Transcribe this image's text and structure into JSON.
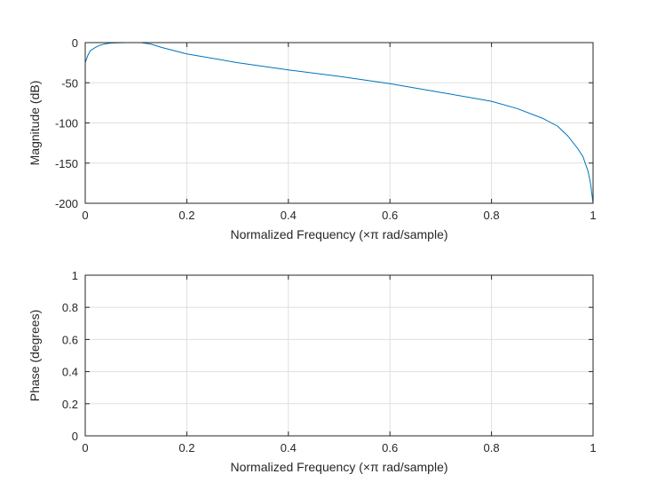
{
  "chart_data": [
    {
      "type": "line",
      "xlabel": "Normalized Frequency (×π rad/sample)",
      "ylabel": "Magnitude (dB)",
      "xlim": [
        0,
        1
      ],
      "ylim": [
        -200,
        0
      ],
      "grid": true,
      "xticks": [
        "0",
        "0.2",
        "0.4",
        "0.6",
        "0.8",
        "1"
      ],
      "yticks": [
        "0",
        "-50",
        "-100",
        "-150",
        "-200"
      ],
      "line_color": "#0072bd",
      "x": [
        0,
        0.005,
        0.01,
        0.02,
        0.03,
        0.04,
        0.05,
        0.08,
        0.11,
        0.13,
        0.15,
        0.2,
        0.3,
        0.4,
        0.5,
        0.6,
        0.7,
        0.8,
        0.85,
        0.9,
        0.93,
        0.95,
        0.97,
        0.98,
        0.99,
        0.995,
        1
      ],
      "y": [
        -25,
        -16,
        -10,
        -6,
        -3,
        -1.5,
        -0.5,
        0,
        0,
        -2,
        -6,
        -14,
        -25,
        -34,
        -42,
        -51,
        -62,
        -73,
        -82,
        -94,
        -104,
        -116,
        -132,
        -142,
        -160,
        -175,
        -200
      ]
    },
    {
      "type": "line",
      "xlabel": "Normalized Frequency (×π rad/sample)",
      "ylabel": "Phase (degrees)",
      "xlim": [
        0,
        1
      ],
      "ylim": [
        0,
        1
      ],
      "grid": true,
      "xticks": [
        "0",
        "0.2",
        "0.4",
        "0.6",
        "0.8",
        "1"
      ],
      "yticks": [
        "0",
        "0.2",
        "0.4",
        "0.6",
        "0.8",
        "1"
      ],
      "x": [],
      "y": []
    }
  ]
}
